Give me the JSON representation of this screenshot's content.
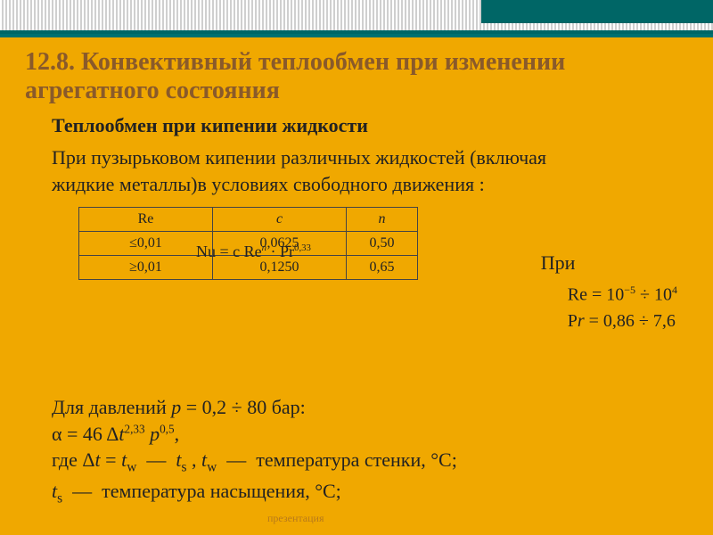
{
  "title": "12.8. Конвективный теплообмен при изменении агрегатного состояния",
  "subhead": "Теплообмен при кипении жидкости",
  "para": "При пузырьковом кипении различных жидкостей (включая жидкие металлы)в условиях свободного движения :",
  "overlap_formula": "Nu = c Re<sup><i>n</i></sup> · Pr<sup>0,33</sup>",
  "right": {
    "pri": "При",
    "re": "Re = 10<sup>−5</sup> ÷ 10<sup>4</sup>",
    "pr": "P<i>r</i> = 0,86 ÷ 7,6"
  },
  "table": {
    "headers": [
      "Re",
      "c",
      "n"
    ],
    "rows": [
      [
        "≤0,01",
        "0,0625",
        "0,50"
      ],
      [
        "≥0,01",
        "0,1250",
        "0,65"
      ]
    ]
  },
  "lower": {
    "l1": "Для давлений <i>p</i> = 0,2 ÷ 80 бар:",
    "l2": "α = 46 Δ<i>t</i><sup>2,33</sup> <i>p</i><sup>0,5</sup>,",
    "l3": "где Δ<i>t</i> = <i>t</i><sub>w</sub> &nbsp;—&nbsp; <i>t</i><sub>s</sub>&nbsp;, <i>t</i><sub>w</sub> &nbsp;—&nbsp; температура стенки, °С;",
    "l4": "<i>t</i><sub>s</sub> &nbsp;—&nbsp; температура насыщения, °С;"
  },
  "watermark": "презентация"
}
